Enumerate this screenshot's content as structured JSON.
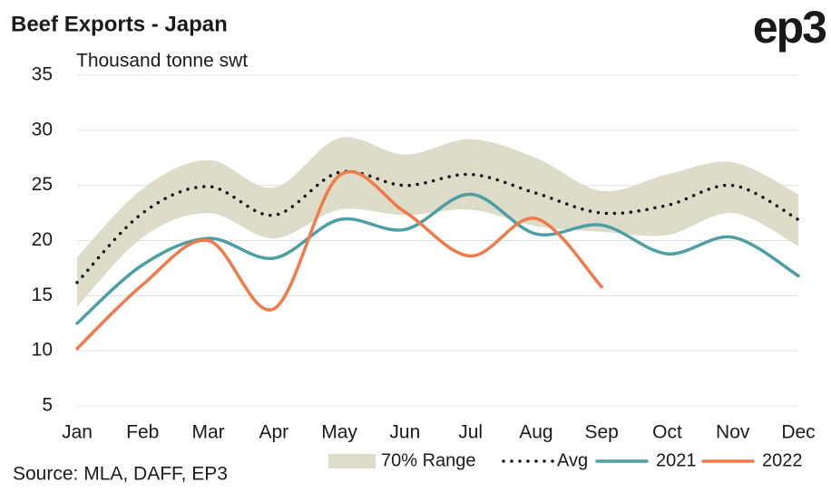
{
  "chart_data": {
    "type": "line",
    "title": "Beef Exports - Japan",
    "logo": "ep3",
    "subtitle": "Thousand tonne swt",
    "source": "Source: MLA, DAFF, EP3",
    "categories": [
      "Jan",
      "Feb",
      "Mar",
      "Apr",
      "May",
      "Jun",
      "Jul",
      "Aug",
      "Sep",
      "Oct",
      "Nov",
      "Dec"
    ],
    "ylim": [
      5,
      35
    ],
    "yticks": [
      5,
      10,
      15,
      20,
      25,
      30,
      35
    ],
    "grid": true,
    "series": [
      {
        "name": "70% Range",
        "kind": "band",
        "color": "#dcdcc8",
        "values": [
          18.5,
          24.7,
          27.3,
          24.8,
          29.3,
          27.8,
          29.2,
          27.5,
          24.5,
          26,
          27.1,
          24.2
        ],
        "lower": [
          14,
          20.3,
          22.5,
          20.2,
          22.8,
          22.3,
          22.8,
          21.3,
          20.8,
          20.5,
          22.5,
          19.5
        ]
      },
      {
        "name": "Avg",
        "kind": "dotted",
        "color": "#111111",
        "values": [
          16.2,
          22.5,
          24.9,
          22.3,
          26.2,
          25,
          26,
          24.3,
          22.5,
          23.2,
          25,
          21.9
        ]
      },
      {
        "name": "2021",
        "kind": "line",
        "color": "#4e9ea6",
        "values": [
          12.5,
          17.8,
          20.2,
          18.4,
          21.9,
          21,
          24.2,
          20.6,
          21.4,
          18.8,
          20.3,
          16.8
        ]
      },
      {
        "name": "2022",
        "kind": "line",
        "color": "#f07a4a",
        "values": [
          10.2,
          16,
          20,
          13.8,
          25.9,
          22.6,
          18.6,
          22,
          15.8,
          null,
          null,
          null
        ]
      }
    ]
  }
}
